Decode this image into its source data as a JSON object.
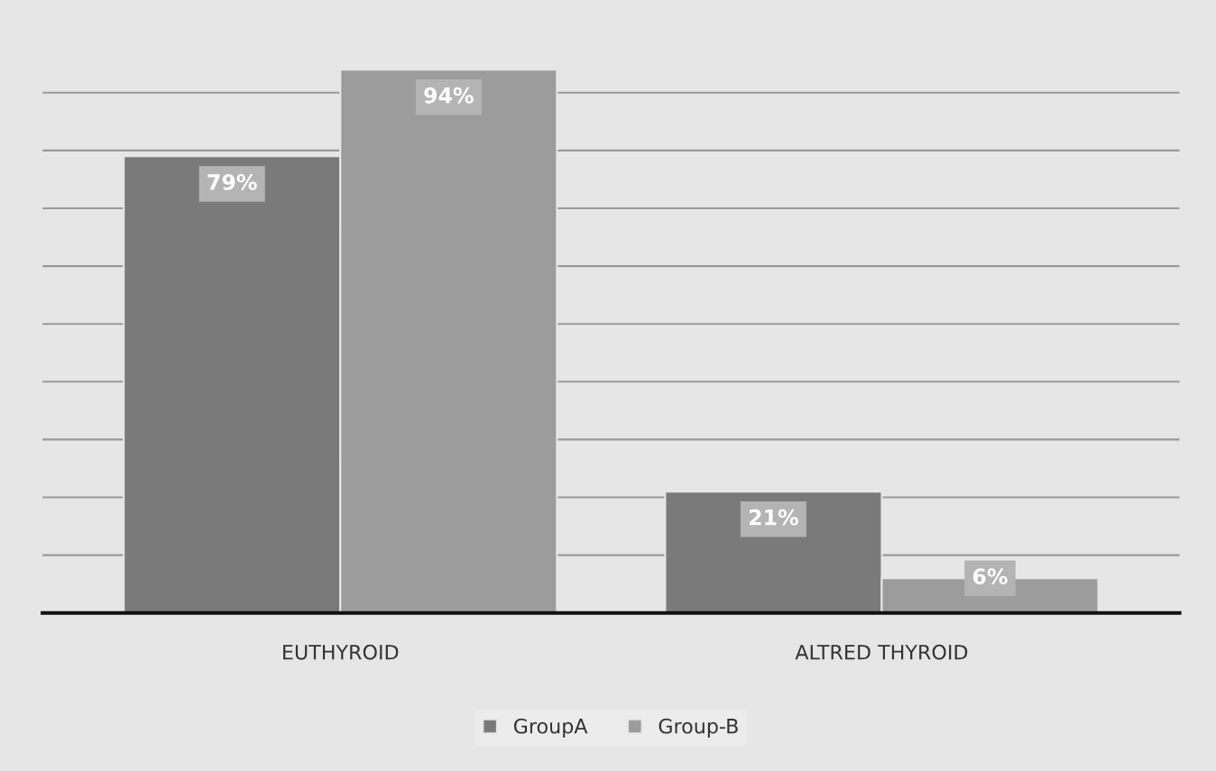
{
  "chart_data": {
    "type": "bar",
    "categories": [
      "EUTHYROID",
      "ALTRED THYROID"
    ],
    "series": [
      {
        "name": "GroupA",
        "color": "#7a7a7a",
        "values": [
          79,
          21
        ],
        "value_labels": [
          "79%",
          "21%"
        ]
      },
      {
        "name": "Group-B",
        "color": "#9c9c9c",
        "values": [
          94,
          6
        ],
        "value_labels": [
          "94%",
          "6%"
        ]
      }
    ],
    "tick_labels": "x",
    "grid": "y",
    "legend": "bottom"
  }
}
